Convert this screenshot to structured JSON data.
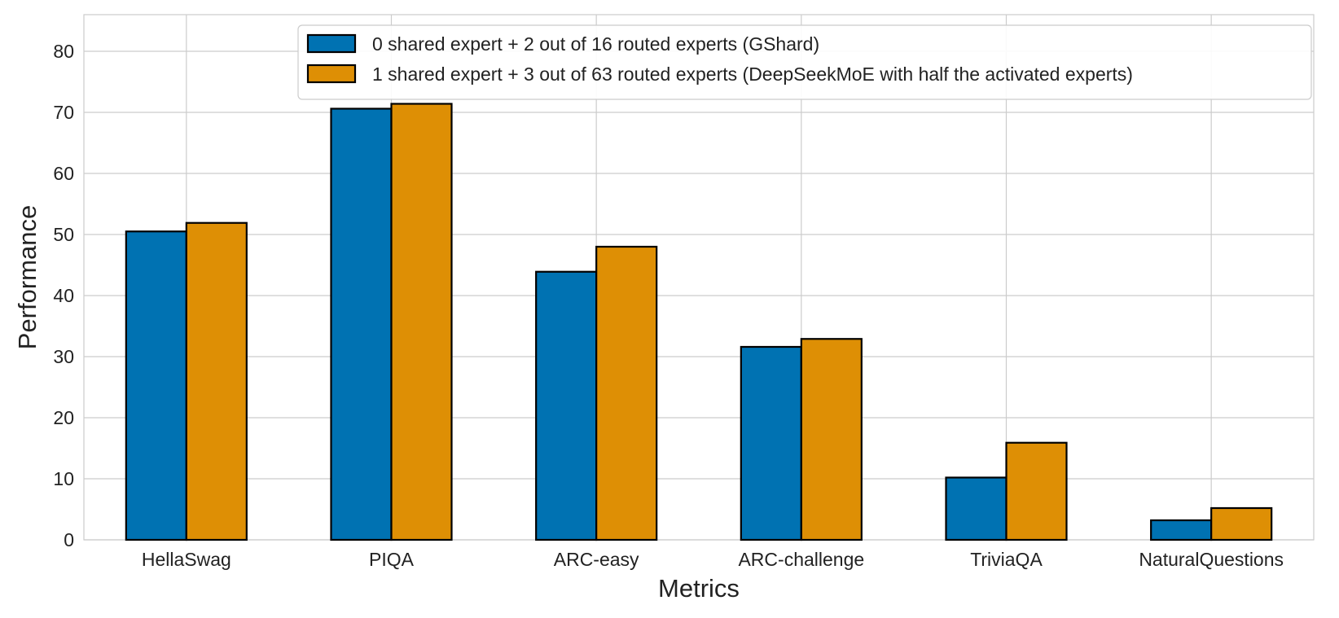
{
  "chart_data": {
    "type": "bar",
    "title": "",
    "xlabel": "Metrics",
    "ylabel": "Performance",
    "categories": [
      "HellaSwag",
      "PIQA",
      "ARC-easy",
      "ARC-challenge",
      "TriviaQA",
      "NaturalQuestions"
    ],
    "series": [
      {
        "name": "0 shared expert + 2 out of 16 routed experts (GShard)",
        "color": "#0072b2",
        "values": [
          50.5,
          70.6,
          43.9,
          31.6,
          10.2,
          3.2
        ]
      },
      {
        "name": "1 shared expert + 3 out of 63 routed experts (DeepSeekMoE with half the activated experts)",
        "color": "#de8f05",
        "values": [
          51.9,
          71.4,
          48.0,
          32.9,
          15.9,
          5.2
        ]
      }
    ],
    "ylim": [
      0,
      86
    ],
    "yticks": [
      0,
      10,
      20,
      30,
      40,
      50,
      60,
      70,
      80
    ],
    "grid": true,
    "legend_position": "top-right"
  }
}
